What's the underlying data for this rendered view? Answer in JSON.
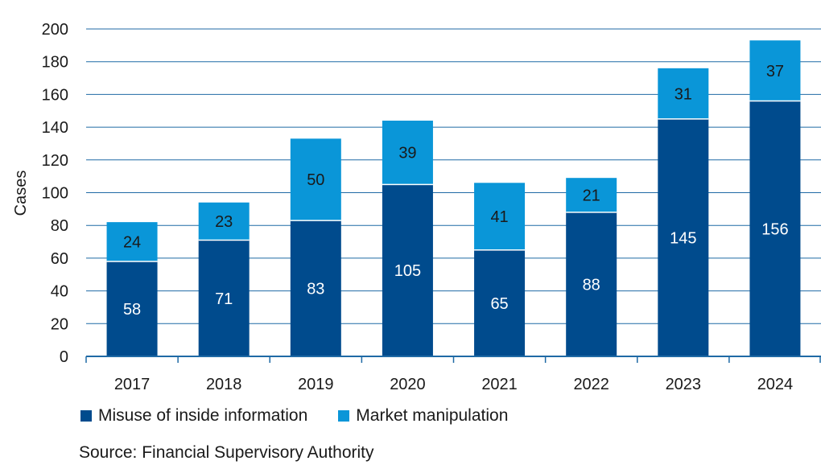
{
  "chart_data": {
    "type": "bar",
    "stacked": true,
    "categories": [
      "2017",
      "2018",
      "2019",
      "2020",
      "2021",
      "2022",
      "2023",
      "2024"
    ],
    "series": [
      {
        "name": "Misuse of inside information",
        "color": "#004b8d",
        "label_color": "#ffffff",
        "values": [
          58,
          71,
          83,
          105,
          65,
          88,
          145,
          156
        ]
      },
      {
        "name": "Market manipulation",
        "color": "#0a96d8",
        "label_color": "#1a1a1a",
        "values": [
          24,
          23,
          50,
          39,
          41,
          21,
          31,
          37
        ]
      }
    ],
    "ylabel": "Cases",
    "xlabel": "",
    "ylim": [
      0,
      200
    ],
    "yticks": [
      0,
      20,
      40,
      60,
      80,
      100,
      120,
      140,
      160,
      180,
      200
    ],
    "grid": true,
    "legend_position": "bottom-left",
    "grid_color": "#1f6aa5"
  },
  "source": "Source: Financial Supervisory Authority"
}
